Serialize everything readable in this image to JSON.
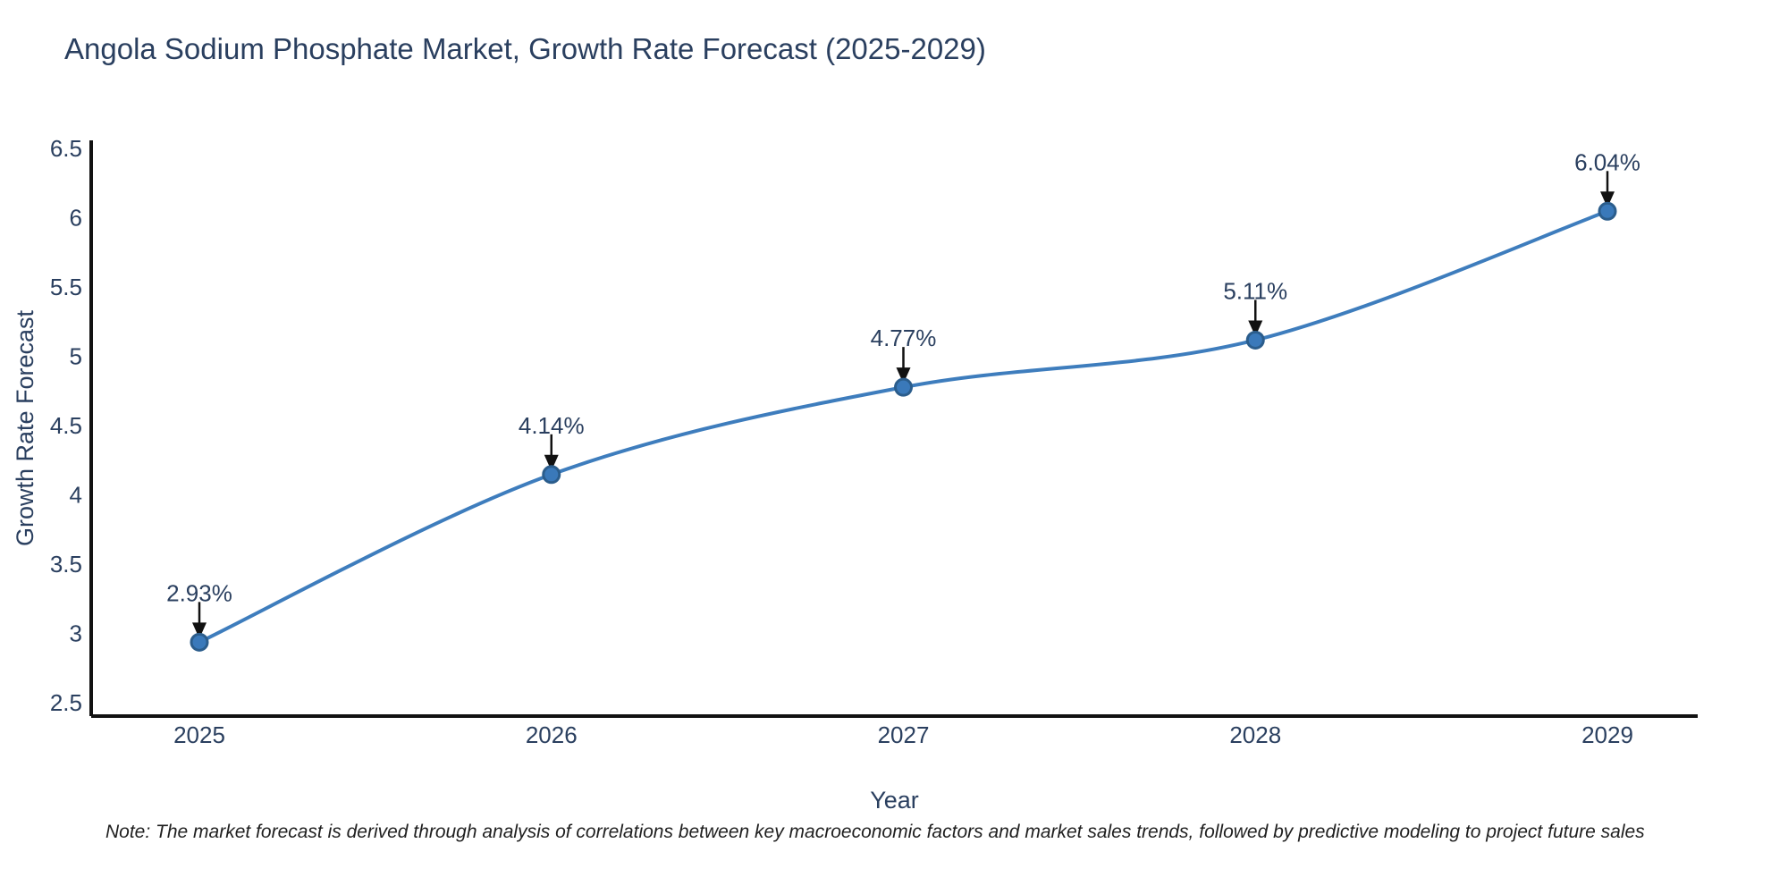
{
  "chart": {
    "title": "Angola Sodium Phosphate Market, Growth Rate Forecast (2025-2029)",
    "xlabel": "Year",
    "ylabel": "Growth Rate Forecast",
    "note": "Note: The market forecast is derived through analysis of correlations between key macroeconomic factors and market sales trends, followed by predictive modeling to project future sales"
  },
  "chart_data": {
    "type": "line",
    "title": "Angola Sodium Phosphate Market, Growth Rate Forecast (2025-2029)",
    "xlabel": "Year",
    "ylabel": "Growth Rate Forecast",
    "x": [
      2025,
      2026,
      2027,
      2028,
      2029
    ],
    "values": [
      2.93,
      4.14,
      4.77,
      5.11,
      6.04
    ],
    "point_labels": [
      "2.93%",
      "4.14%",
      "4.77%",
      "5.11%",
      "6.04%"
    ],
    "xtick_labels": [
      "2025",
      "2026",
      "2027",
      "2028",
      "2029"
    ],
    "ytick_values": [
      6.5,
      6.0,
      5.5,
      5.0,
      4.5,
      4.0,
      3.5,
      3.0,
      2.5
    ],
    "ytick_labels": [
      "6.5",
      "6",
      "5.5",
      "5",
      "4.5",
      "4",
      "3.5",
      "3",
      "2.5"
    ],
    "ylim": [
      2.5,
      6.5
    ],
    "grid": false,
    "line_shape": "spline",
    "legend": "none",
    "colors": {
      "line": "#3e7dbd",
      "marker": "#3a79ba",
      "marker_edge": "#2b5d8c",
      "text": "#2a3f5f",
      "axis": "#111111",
      "arrow": "#111111",
      "note": "#1f1f1f"
    }
  }
}
